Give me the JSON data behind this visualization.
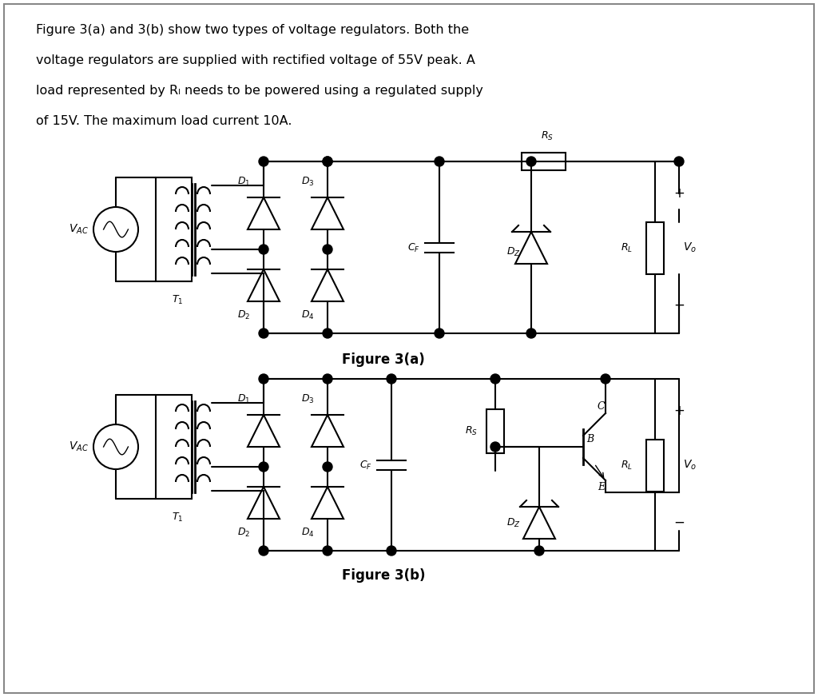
{
  "bg_color": "#ffffff",
  "border_color": "#cccccc",
  "line_color": "#000000",
  "text_color": "#000000",
  "title_text": "Figure 3(a) and 3(b) show two types of voltage regulators. Both the\nvoltage regulators are supplied with rectified voltage of 55V peak. A\nload represented by Rₗ needs to be powered using a regulated supply\nof 15V. The maximum load current 10A.",
  "fig3a_label": "Figure 3(a)",
  "fig3b_label": "Figure 3(b)",
  "fig_width": 10.24,
  "fig_height": 8.72,
  "dpi": 100
}
